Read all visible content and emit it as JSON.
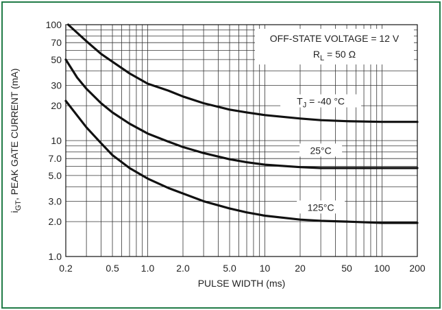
{
  "chart_data": {
    "type": "line",
    "title": "",
    "xlabel": "PULSE WIDTH (ms)",
    "ylabel_main": "i",
    "ylabel_sub": "GT",
    "ylabel_rest": ", PEAK GATE CURRENT (mA)",
    "x_scale": "log",
    "y_scale": "log",
    "xlim": [
      0.2,
      200
    ],
    "ylim": [
      1.0,
      100
    ],
    "x_ticks": [
      {
        "v": 0.2,
        "label": "0.2"
      },
      {
        "v": 0.5,
        "label": "0.5"
      },
      {
        "v": 1,
        "label": "1.0"
      },
      {
        "v": 2,
        "label": "2.0"
      },
      {
        "v": 5,
        "label": "5.0"
      },
      {
        "v": 10,
        "label": "10"
      },
      {
        "v": 20,
        "label": "20"
      },
      {
        "v": 50,
        "label": "50"
      },
      {
        "v": 100,
        "label": "100"
      },
      {
        "v": 200,
        "label": "200"
      }
    ],
    "y_ticks": [
      {
        "v": 1,
        "label": "1.0"
      },
      {
        "v": 2,
        "label": "2.0"
      },
      {
        "v": 3,
        "label": "3.0"
      },
      {
        "v": 5,
        "label": "5.0"
      },
      {
        "v": 7,
        "label": "7.0"
      },
      {
        "v": 10,
        "label": "10"
      },
      {
        "v": 20,
        "label": "20"
      },
      {
        "v": 30,
        "label": "30"
      },
      {
        "v": 50,
        "label": "50"
      },
      {
        "v": 70,
        "label": "70"
      },
      {
        "v": 100,
        "label": "100"
      }
    ],
    "x_grid": [
      0.2,
      0.3,
      0.4,
      0.5,
      0.6,
      0.7,
      0.8,
      0.9,
      1,
      2,
      3,
      4,
      5,
      6,
      7,
      8,
      9,
      10,
      20,
      30,
      40,
      50,
      60,
      70,
      80,
      90,
      100,
      200
    ],
    "y_grid": [
      1,
      2,
      3,
      4,
      5,
      6,
      7,
      8,
      9,
      10,
      20,
      30,
      40,
      50,
      60,
      70,
      80,
      90,
      100
    ],
    "grid": true,
    "series": [
      {
        "label_main": "T",
        "label_sub": "J",
        "label_rest": " = -40 °C",
        "x": [
          0.21,
          0.3,
          0.4,
          0.5,
          0.7,
          1,
          1.5,
          2,
          3,
          5,
          7,
          10,
          20,
          30,
          50,
          100,
          200
        ],
        "y": [
          100,
          72,
          56,
          48,
          38,
          31,
          27,
          24,
          21,
          18.5,
          17.5,
          16.6,
          15.5,
          15,
          14.7,
          14.5,
          14.5
        ]
      },
      {
        "label_main": "",
        "label_sub": "",
        "label_rest": "25°C",
        "x": [
          0.2,
          0.25,
          0.3,
          0.4,
          0.5,
          0.7,
          1,
          1.5,
          2,
          3,
          5,
          7,
          10,
          20,
          30,
          50,
          100,
          200
        ],
        "y": [
          50,
          35,
          28,
          21,
          17.5,
          14,
          11.5,
          9.8,
          8.8,
          7.8,
          6.9,
          6.5,
          6.2,
          5.9,
          5.8,
          5.8,
          5.8,
          5.8
        ]
      },
      {
        "label_main": "",
        "label_sub": "",
        "label_rest": "125°C",
        "x": [
          0.2,
          0.3,
          0.4,
          0.5,
          0.7,
          1,
          1.5,
          2,
          3,
          5,
          7,
          10,
          20,
          30,
          50,
          100,
          200
        ],
        "y": [
          22,
          13,
          9.5,
          7.5,
          5.8,
          4.7,
          3.9,
          3.5,
          3.0,
          2.6,
          2.4,
          2.25,
          2.08,
          2.03,
          2.0,
          1.95,
          1.95
        ]
      }
    ],
    "annotation_line1": "OFF-STATE VOLTAGE = 12 V",
    "annotation_line2_main": "R",
    "annotation_line2_sub": "L",
    "annotation_line2_rest": " = 50 Ω"
  }
}
